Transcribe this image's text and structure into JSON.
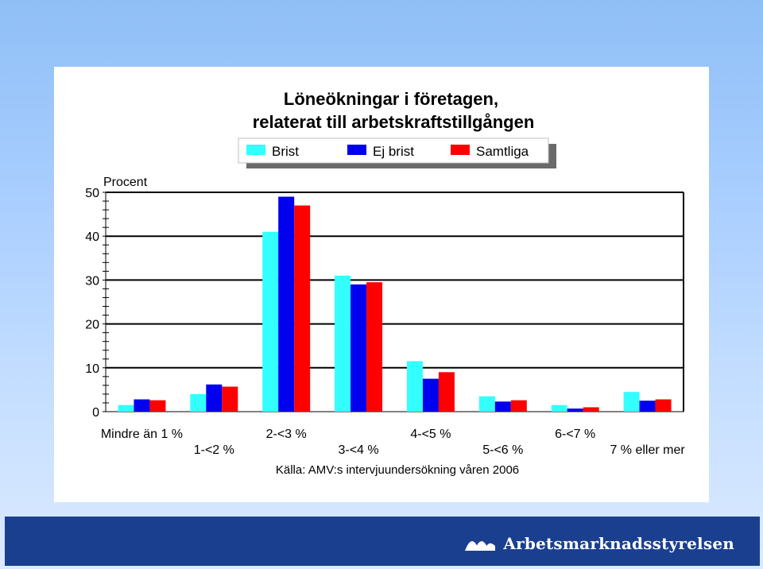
{
  "chart_data": {
    "type": "bar",
    "title": "Löneökningar i företagen,",
    "subtitle": "relaterat till arbetskraftstillgången",
    "ylabel": "Procent",
    "ylim": [
      0,
      50
    ],
    "yticks": [
      0,
      10,
      20,
      30,
      40,
      50
    ],
    "grid": true,
    "legend_position": "top",
    "categories": [
      "Mindre än 1 %",
      "1-<2 %",
      "2-<3 %",
      "3-<4 %",
      "4-<5 %",
      "5-<6 %",
      "6-<7 %",
      "7 % eller mer"
    ],
    "series": [
      {
        "name": "Brist",
        "color": "#33ffff",
        "values": [
          1.5,
          4,
          41,
          31,
          11.5,
          3.5,
          1.5,
          4.5
        ]
      },
      {
        "name": "Ej brist",
        "color": "#0000ee",
        "values": [
          2.8,
          6.2,
          49,
          29,
          7.5,
          2.3,
          0.7,
          2.5
        ]
      },
      {
        "name": "Samtliga",
        "color": "#ff0000",
        "values": [
          2.6,
          5.7,
          47,
          29.5,
          9,
          2.6,
          1,
          2.8
        ]
      }
    ],
    "source": "Källa: AMV:s intervjuundersökning våren 2006"
  },
  "footer": {
    "logo_text": "Arbetsmarknadsstyrelsen",
    "logo_icon": "wave-logo-icon",
    "band_color": "#1b3f8f"
  }
}
